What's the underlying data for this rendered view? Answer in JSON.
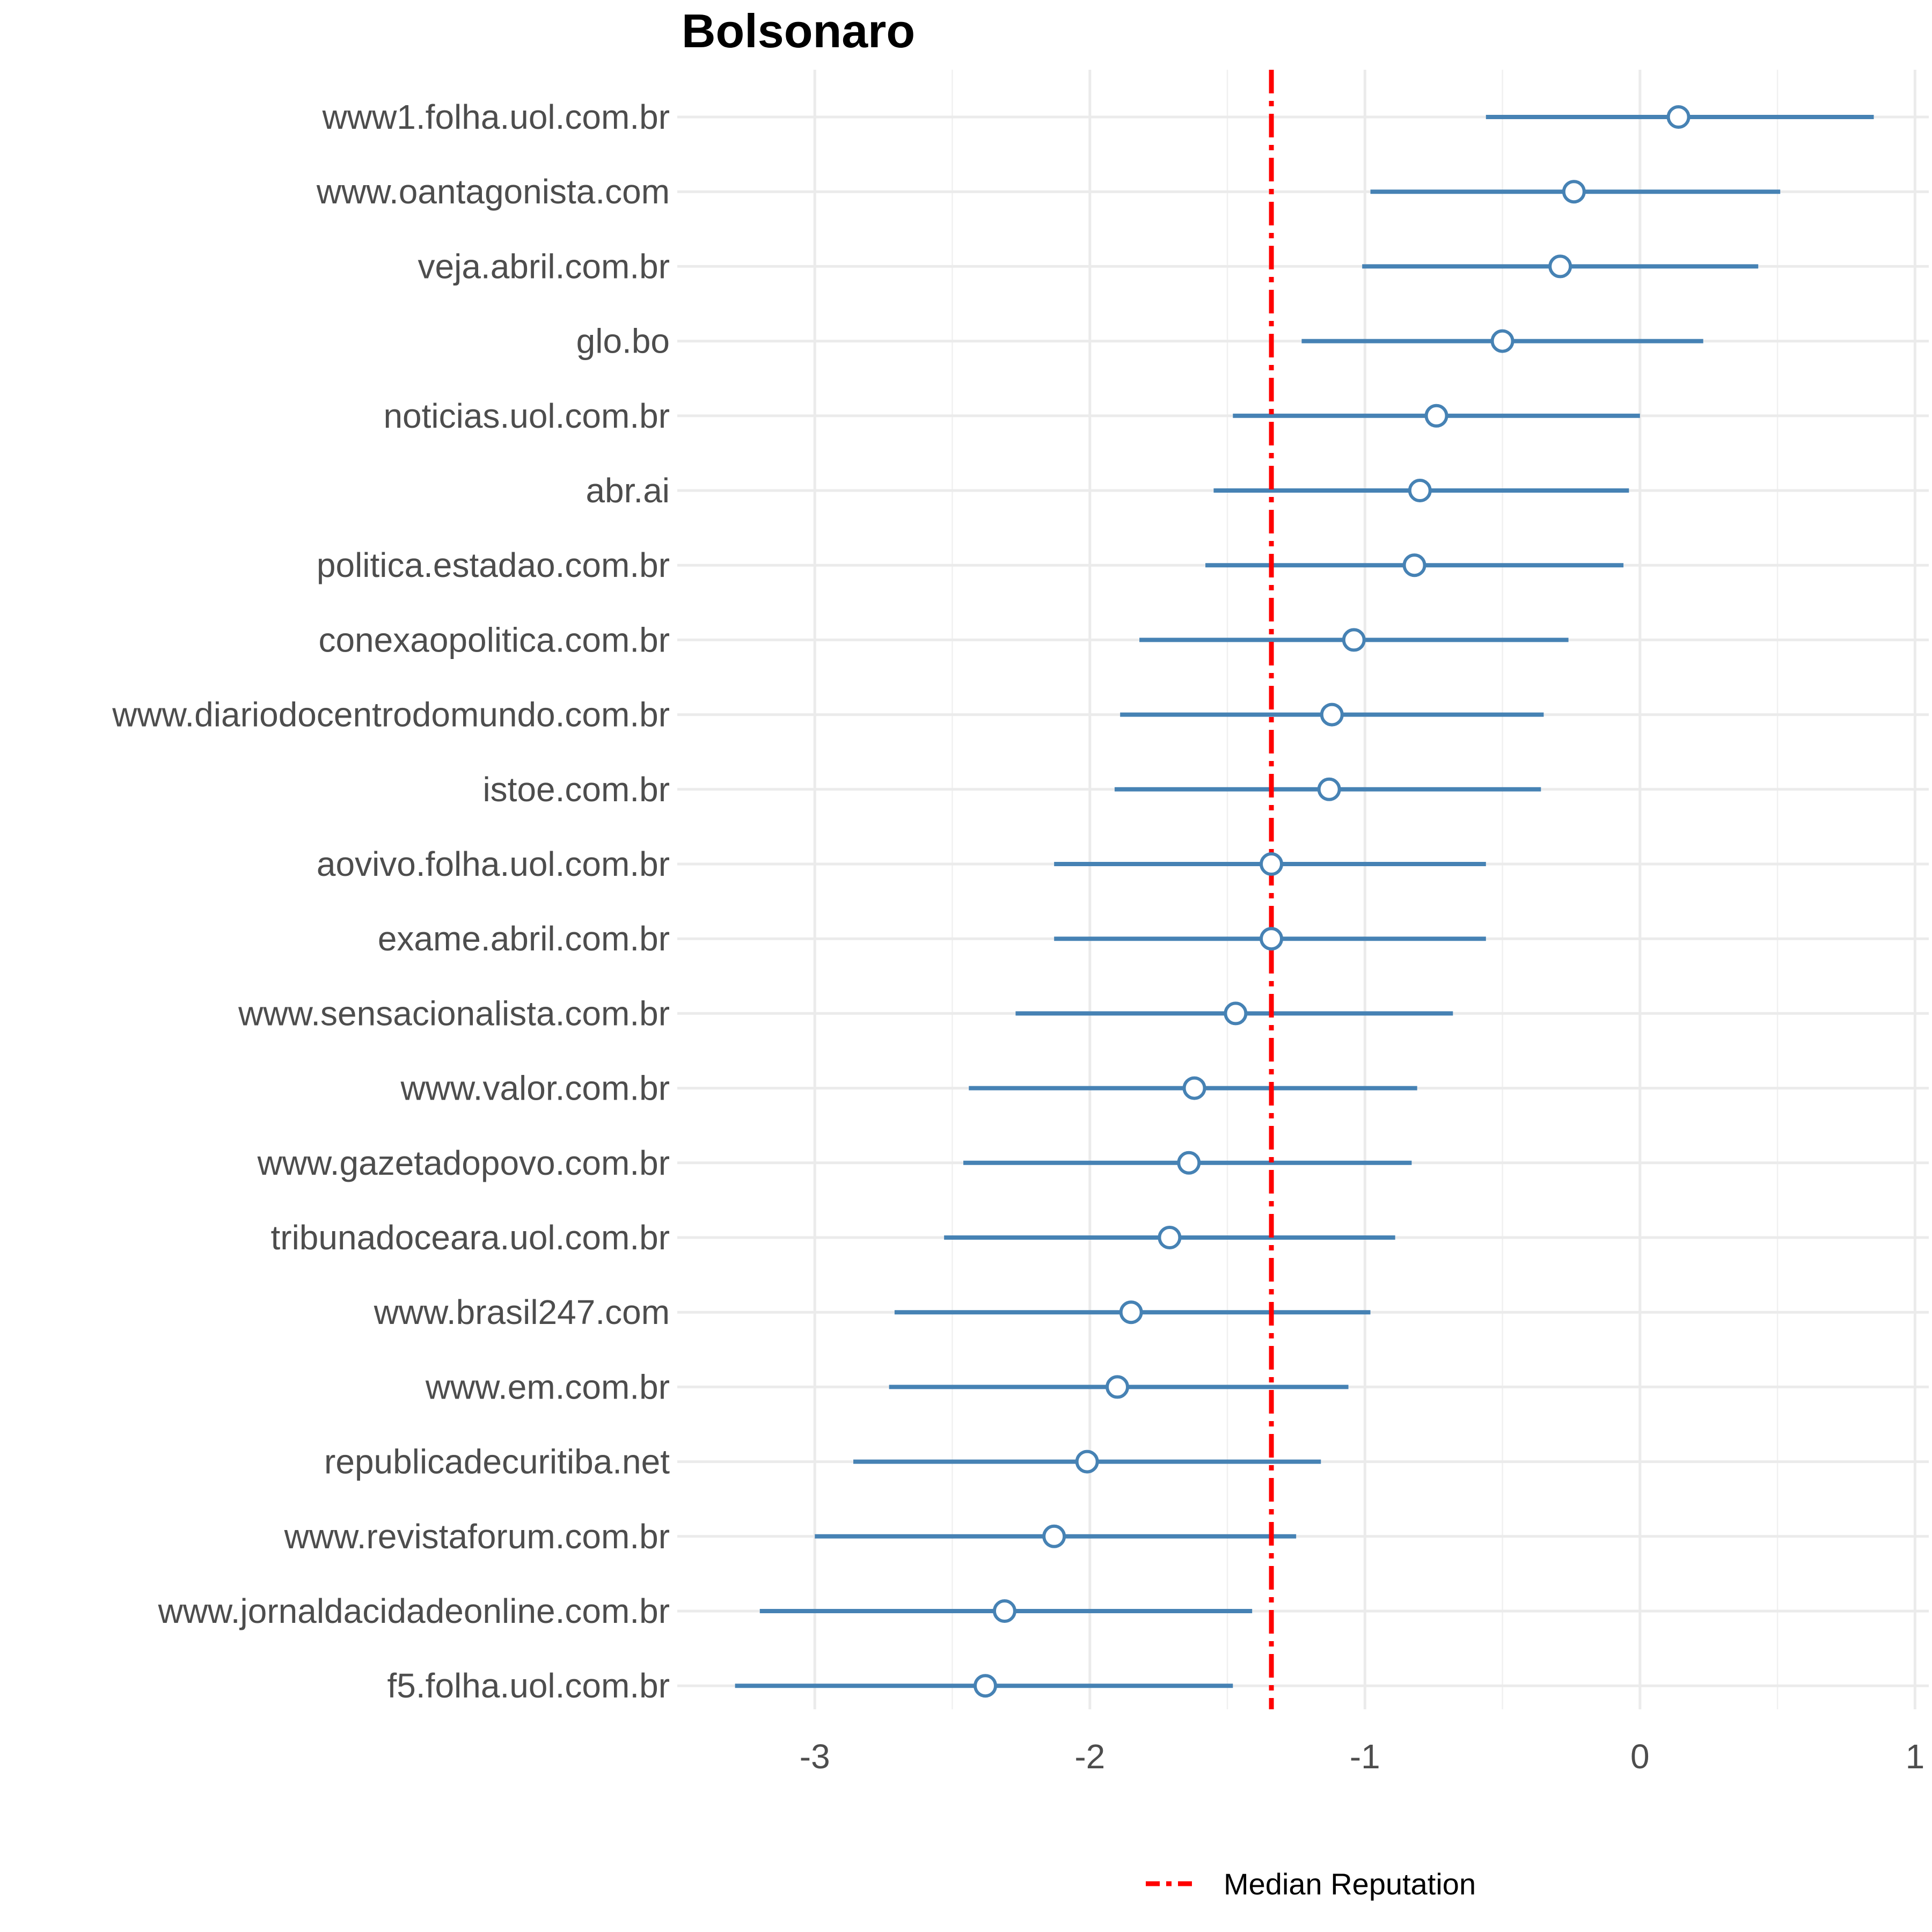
{
  "chart_data": {
    "type": "errorbar",
    "title": "Bolsonaro",
    "xlabel": "",
    "ylabel": "",
    "xlim": [
      -3.5,
      1.05
    ],
    "x_ticks": [
      -3,
      -2,
      -1,
      0,
      1
    ],
    "grid": true,
    "legend_position": "bottom",
    "median": {
      "label": "Median Reputation",
      "value": -1.34,
      "color": "#ff0000"
    },
    "series_color": "#4682b4",
    "items": [
      {
        "label": "www1.folha.uol.com.br",
        "estimate": 0.14,
        "low": -0.56,
        "high": 0.85
      },
      {
        "label": "www.oantagonista.com",
        "estimate": -0.24,
        "low": -0.98,
        "high": 0.51
      },
      {
        "label": "veja.abril.com.br",
        "estimate": -0.29,
        "low": -1.01,
        "high": 0.43
      },
      {
        "label": "glo.bo",
        "estimate": -0.5,
        "low": -1.23,
        "high": 0.23
      },
      {
        "label": "noticias.uol.com.br",
        "estimate": -0.74,
        "low": -1.48,
        "high": 0.0
      },
      {
        "label": "abr.ai",
        "estimate": -0.8,
        "low": -1.55,
        "high": -0.04
      },
      {
        "label": "politica.estadao.com.br",
        "estimate": -0.82,
        "low": -1.58,
        "high": -0.06
      },
      {
        "label": "conexaopolitica.com.br",
        "estimate": -1.04,
        "low": -1.82,
        "high": -0.26
      },
      {
        "label": "www.diariodocentrodomundo.com.br",
        "estimate": -1.12,
        "low": -1.89,
        "high": -0.35
      },
      {
        "label": "istoe.com.br",
        "estimate": -1.13,
        "low": -1.91,
        "high": -0.36
      },
      {
        "label": "aovivo.folha.uol.com.br",
        "estimate": -1.34,
        "low": -2.13,
        "high": -0.56
      },
      {
        "label": "exame.abril.com.br",
        "estimate": -1.34,
        "low": -2.13,
        "high": -0.56
      },
      {
        "label": "www.sensacionalista.com.br",
        "estimate": -1.47,
        "low": -2.27,
        "high": -0.68
      },
      {
        "label": "www.valor.com.br",
        "estimate": -1.62,
        "low": -2.44,
        "high": -0.81
      },
      {
        "label": "www.gazetadopovo.com.br",
        "estimate": -1.64,
        "low": -2.46,
        "high": -0.83
      },
      {
        "label": "tribunadoceara.uol.com.br",
        "estimate": -1.71,
        "low": -2.53,
        "high": -0.89
      },
      {
        "label": "www.brasil247.com",
        "estimate": -1.85,
        "low": -2.71,
        "high": -0.98
      },
      {
        "label": "www.em.com.br",
        "estimate": -1.9,
        "low": -2.73,
        "high": -1.06
      },
      {
        "label": "republicadecuritiba.net",
        "estimate": -2.01,
        "low": -2.86,
        "high": -1.16
      },
      {
        "label": "www.revistaforum.com.br",
        "estimate": -2.13,
        "low": -3.0,
        "high": -1.25
      },
      {
        "label": "www.jornaldacidadeonline.com.br",
        "estimate": -2.31,
        "low": -3.2,
        "high": -1.41
      },
      {
        "label": "f5.folha.uol.com.br",
        "estimate": -2.38,
        "low": -3.29,
        "high": -1.48
      }
    ]
  }
}
